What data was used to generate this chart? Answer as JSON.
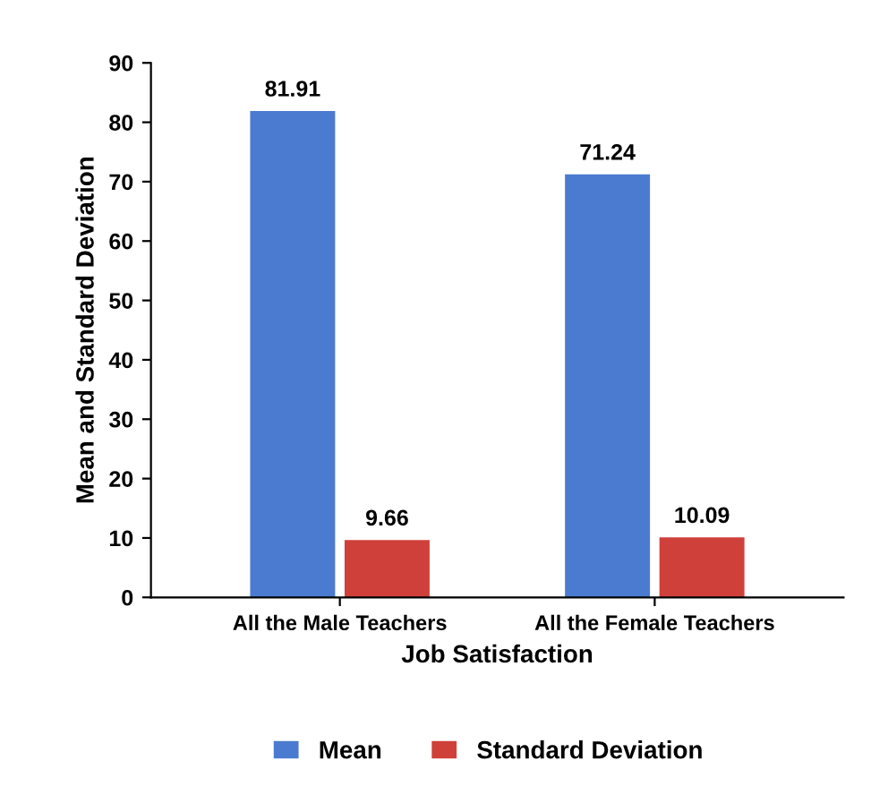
{
  "chart_data": {
    "type": "bar",
    "xlabel": "Job Satisfaction",
    "ylabel": "Mean and Standard Deviation",
    "categories": [
      "All the Male Teachers",
      "All the Female Teachers"
    ],
    "series": [
      {
        "name": "Mean",
        "color": "#4a7bd0",
        "values": [
          81.91,
          71.24
        ]
      },
      {
        "name": "Standard Deviation",
        "color": "#d0403a",
        "values": [
          9.66,
          10.09
        ]
      }
    ],
    "ylim": [
      0,
      90
    ],
    "yticks": [
      0,
      10,
      20,
      30,
      40,
      50,
      60,
      70,
      80,
      90
    ],
    "data_labels": true,
    "legend": "bottom",
    "grid": false
  }
}
